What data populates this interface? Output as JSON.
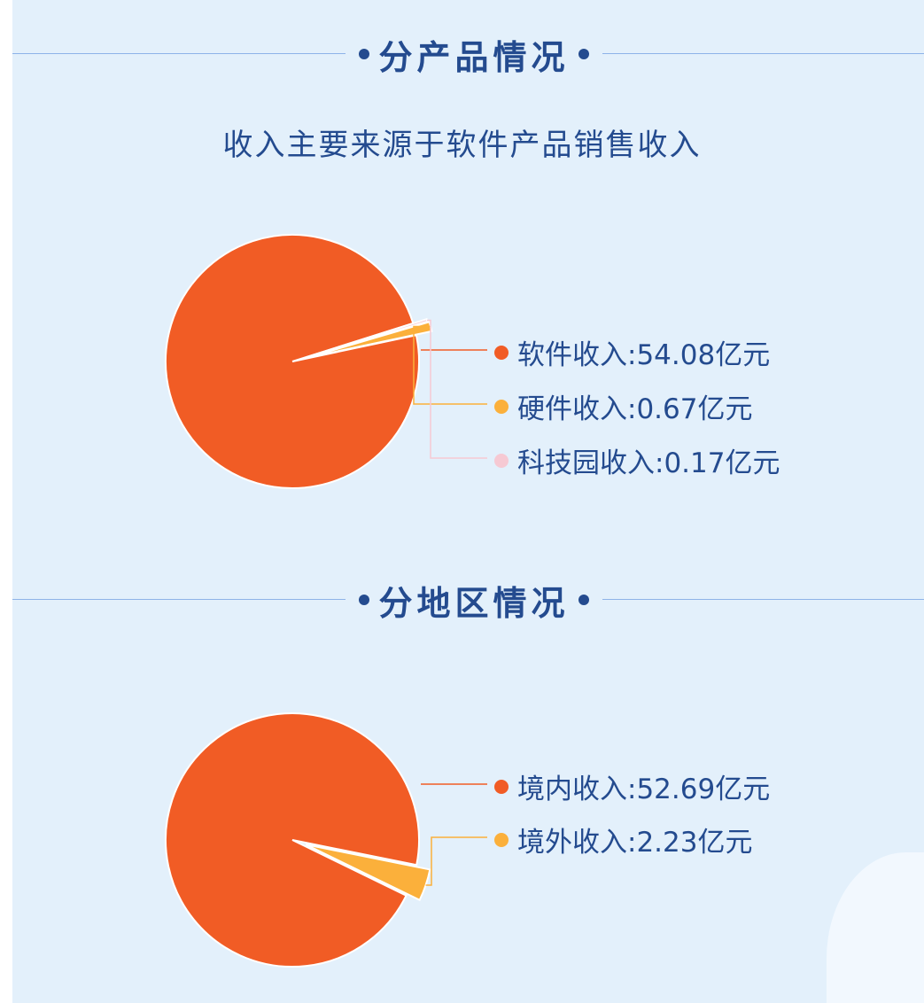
{
  "sections": [
    {
      "title": "分产品情况"
    },
    {
      "title": "分地区情况"
    }
  ],
  "subtitle": "收入主要来源于软件产品销售收入",
  "colors": {
    "primary": "#f15c25",
    "secondary": "#fbb03b",
    "tertiary": "#f6c9d3",
    "text": "#244b8f",
    "background": "#e3f0fb"
  },
  "chart_data": [
    {
      "type": "pie",
      "title": "",
      "unit": "亿元",
      "slices": [
        {
          "name": "软件收入",
          "value": 54.08,
          "label": "软件收入:54.08亿元",
          "color": "#f15c25"
        },
        {
          "name": "硬件收入",
          "value": 0.67,
          "label": "硬件收入:0.67亿元",
          "color": "#fbb03b"
        },
        {
          "name": "科技园收入",
          "value": 0.17,
          "label": "科技园收入:0.17亿元",
          "color": "#f6c9d3"
        }
      ]
    },
    {
      "type": "pie",
      "title": "",
      "unit": "亿元",
      "slices": [
        {
          "name": "境内收入",
          "value": 52.69,
          "label": "境内收入:52.69亿元",
          "color": "#f15c25"
        },
        {
          "name": "境外收入",
          "value": 2.23,
          "label": "境外收入:2.23亿元",
          "color": "#fbb03b"
        }
      ]
    }
  ]
}
